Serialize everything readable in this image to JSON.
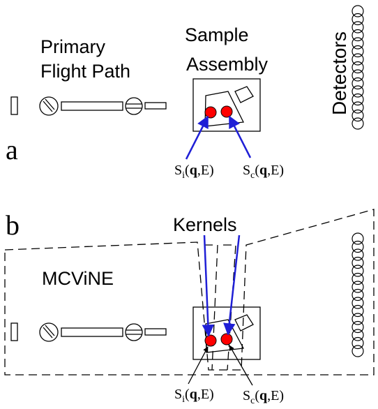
{
  "panel_a": {
    "letter": "a",
    "primary_label_line1": "Primary",
    "primary_label_line2": "Flight Path",
    "sample_label_line1": "Sample",
    "sample_label_line2": "Assembly",
    "detectors_label": "Detectors",
    "kernel_i": {
      "prefix": "S",
      "sub": "i",
      "open": "(",
      "bold": "q",
      "rest": ",E)"
    },
    "kernel_c": {
      "prefix": "S",
      "sub": "c",
      "open": "(",
      "bold": "q",
      "rest": ",E)"
    }
  },
  "panel_b": {
    "letter": "b",
    "kernels_label": "Kernels",
    "software_label": "MCViNE",
    "kernel_i": {
      "prefix": "S",
      "sub": "i",
      "open": "(",
      "bold": "q",
      "rest": ",E)"
    },
    "kernel_c": {
      "prefix": "S",
      "sub": "c",
      "open": "(",
      "bold": "q",
      "rest": ",E)"
    }
  },
  "colors": {
    "line": "#000000",
    "scatterer_fill": "#ff0000",
    "kernel_arrow": "#1f1fd6"
  }
}
